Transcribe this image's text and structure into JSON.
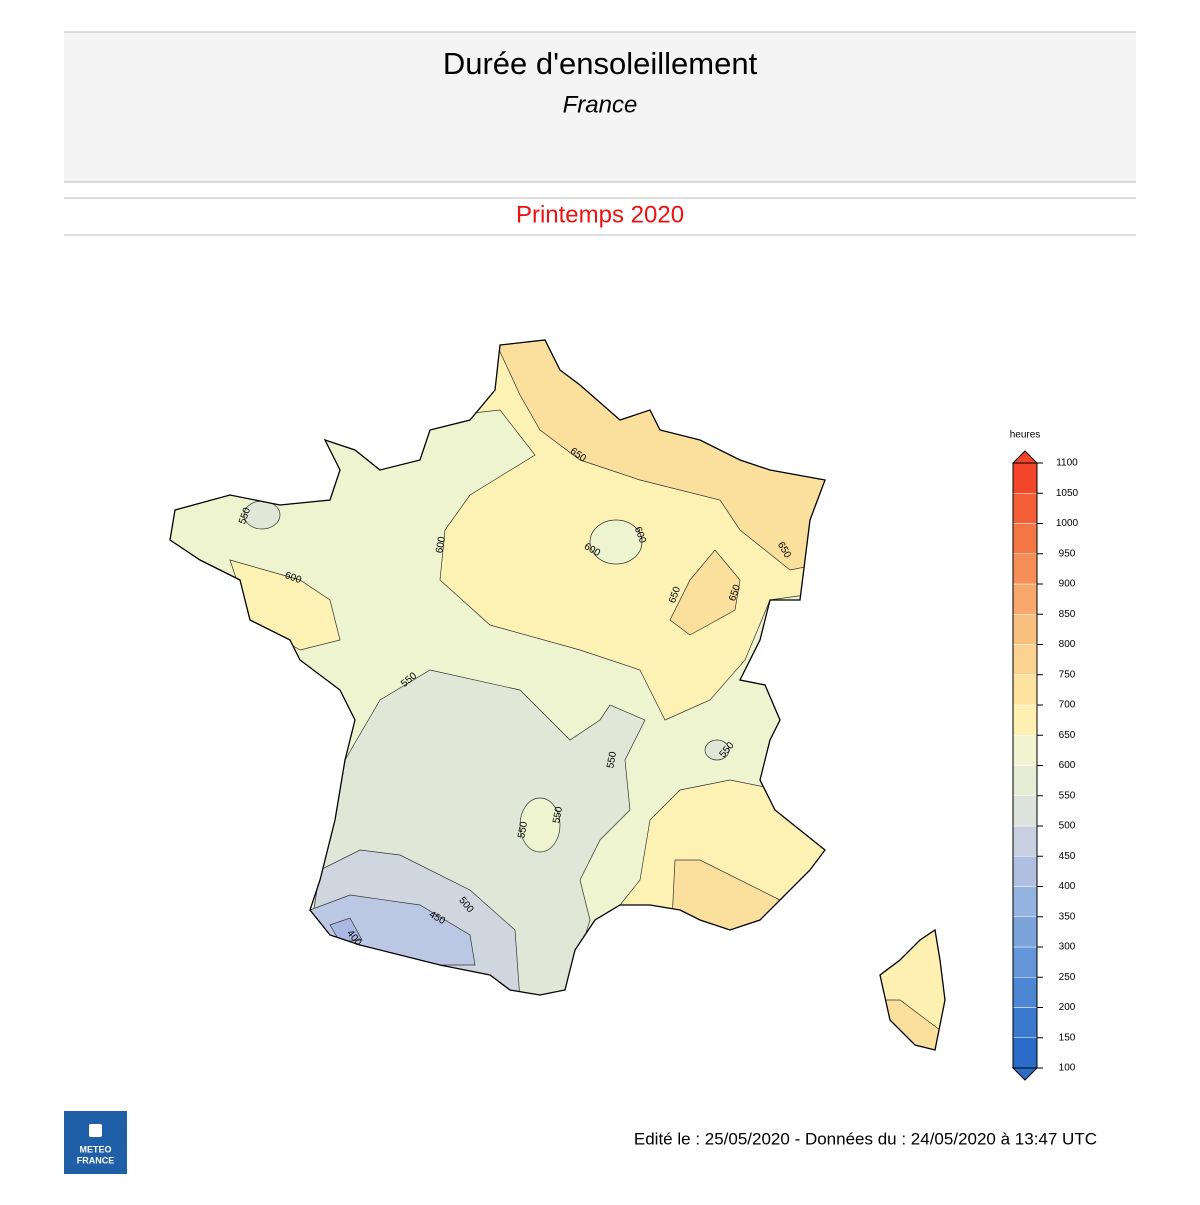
{
  "header": {
    "title": "Durée d'ensoleillement",
    "subtitle": "France"
  },
  "period": "Printemps 2020",
  "legend": {
    "unit": "heures",
    "ticks": [
      100,
      150,
      200,
      250,
      300,
      350,
      400,
      450,
      500,
      550,
      600,
      650,
      700,
      750,
      800,
      850,
      900,
      950,
      1000,
      1050,
      1100
    ],
    "colors": [
      "#2b6cc9",
      "#3b79cf",
      "#4d87d4",
      "#6495d8",
      "#7ba4dc",
      "#93b3e0",
      "#aebfe2",
      "#c7cfe0",
      "#dde2dd",
      "#e7ecd5",
      "#f1f5cf",
      "#fdf0b0",
      "#fde2a0",
      "#fbd290",
      "#f9bf7e",
      "#f7a86a",
      "#f68f57",
      "#f47644",
      "#f35e36",
      "#f2452a"
    ]
  },
  "contour_labels": [
    650,
    650,
    650,
    650,
    600,
    600,
    600,
    600,
    550,
    550,
    550,
    550,
    550,
    550,
    500,
    450,
    400
  ],
  "footer": "Edité le : 25/05/2020 - Données du : 24/05/2020 à 13:47 UTC",
  "logo": [
    "METEO",
    "FRANCE"
  ]
}
